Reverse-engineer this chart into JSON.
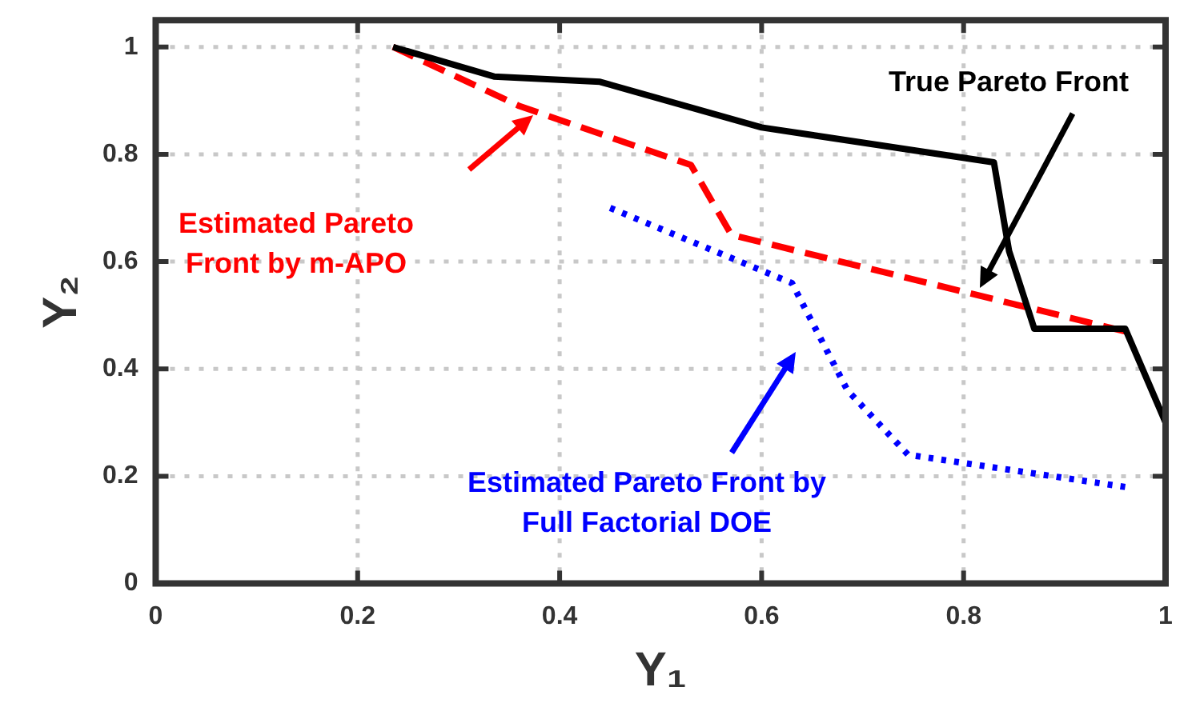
{
  "chart_data": {
    "type": "line",
    "xlabel": "Y₁",
    "ylabel": "Y₂",
    "xlim": [
      0,
      1
    ],
    "ylim": [
      0,
      1.05
    ],
    "xticks": [
      0,
      0.2,
      0.4,
      0.6,
      0.8,
      1
    ],
    "yticks": [
      0,
      0.2,
      0.4,
      0.6,
      0.8,
      1
    ],
    "grid": true,
    "legend": false,
    "marker": "none",
    "series": [
      {
        "color": "#000000",
        "line_style": "solid",
        "x": [
          0.235,
          0.335,
          0.44,
          0.6,
          0.83,
          0.845,
          0.87,
          0.96,
          1.0
        ],
        "values": [
          1.0,
          0.945,
          0.935,
          0.85,
          0.785,
          0.62,
          0.475,
          0.475,
          0.3
        ]
      },
      {
        "color": "#ff0000",
        "line_style": "dashed",
        "x": [
          0.235,
          0.36,
          0.53,
          0.57,
          0.96
        ],
        "values": [
          1.0,
          0.89,
          0.78,
          0.65,
          0.47
        ]
      },
      {
        "color": "#0000ff",
        "line_style": "dotted",
        "x": [
          0.45,
          0.63,
          0.685,
          0.745,
          0.96
        ],
        "values": [
          0.7,
          0.56,
          0.36,
          0.24,
          0.18
        ]
      }
    ],
    "annotations": [
      "True Pareto Front",
      "Estimated Pareto Front by m-APO",
      "Estimated Pareto Front by Full Factorial DOE"
    ]
  }
}
